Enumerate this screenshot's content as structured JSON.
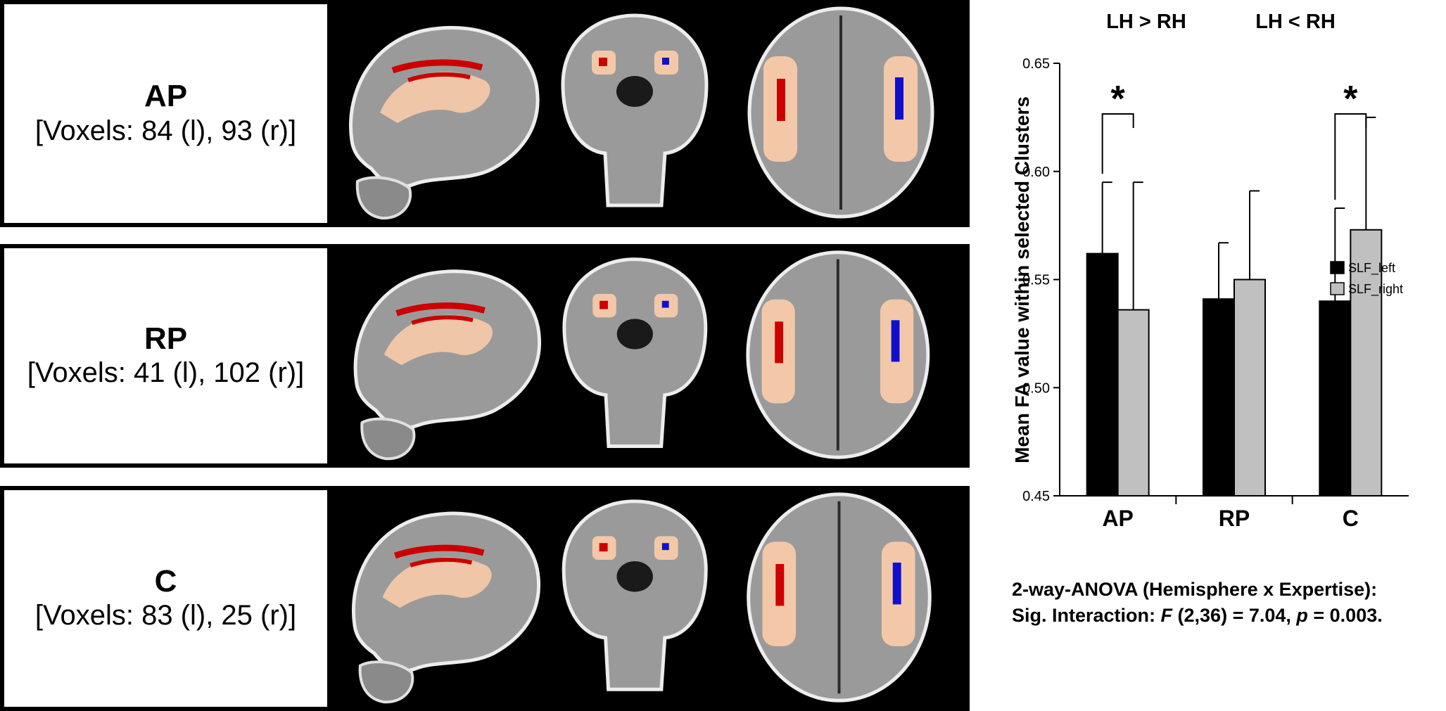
{
  "panels": [
    {
      "title": "AP",
      "voxels": "[Voxels: 84 (l), 93 (r)]"
    },
    {
      "title": "RP",
      "voxels": "[Voxels: 41 (l), 102 (r)]"
    },
    {
      "title": "C",
      "voxels": "[Voxels: 83 (l), 25 (r)]"
    }
  ],
  "group_headers": [
    "LH > RH",
    "LH < RH"
  ],
  "significance_marker": "*",
  "colors": {
    "slf_left": "#000000",
    "slf_right": "#c0c0c0",
    "cluster_left": "#cc0000",
    "cluster_right": "#1010cc",
    "overlay": "#f3c8a8"
  },
  "chart_data": {
    "type": "bar",
    "ylabel": "Mean FA value within selected Clusters",
    "categories": [
      "AP",
      "RP",
      "C"
    ],
    "ylim": [
      0.45,
      0.65
    ],
    "yticks": [
      "0.45",
      "0.50",
      "0.55",
      "0.60",
      "0.65"
    ],
    "series": [
      {
        "name": "SLF_left",
        "values": [
          0.562,
          0.541,
          0.54
        ],
        "errors": [
          0.033,
          0.026,
          0.043
        ]
      },
      {
        "name": "SLF_right",
        "values": [
          0.536,
          0.55,
          0.573
        ],
        "errors": [
          0.059,
          0.041,
          0.052
        ]
      }
    ],
    "legend_position": "right",
    "significant_categories": [
      "AP",
      "C"
    ]
  },
  "stats": {
    "line1": "2-way-ANOVA (Hemisphere x Expertise):",
    "line2_prefix": "Sig. Interaction: ",
    "line2_F": "F",
    "line2_mid": " (2,36) = 7.04, ",
    "line2_p": "p",
    "line2_suffix": " = 0.003."
  }
}
